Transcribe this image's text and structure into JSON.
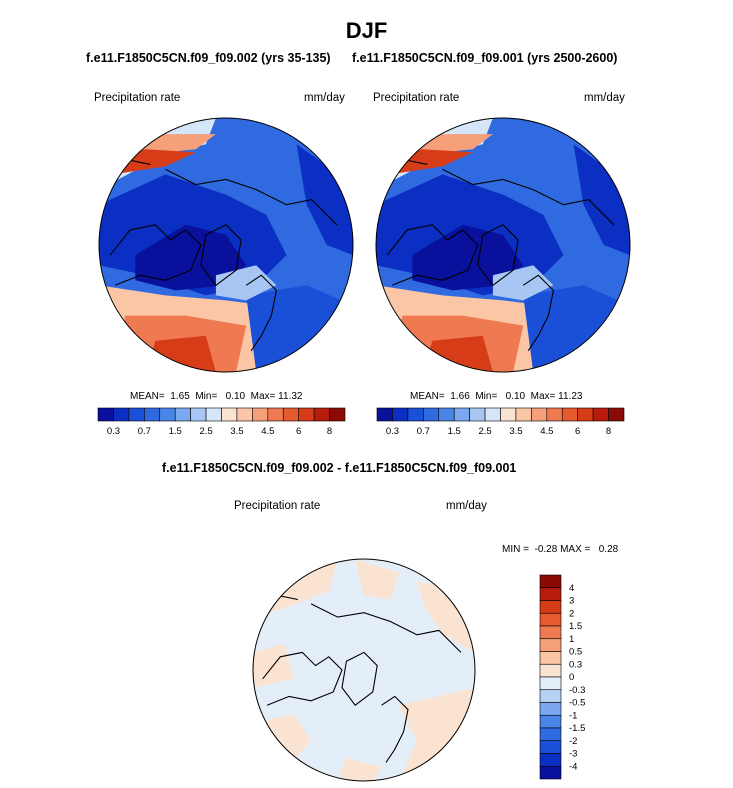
{
  "figure": {
    "title": "DJF",
    "left_title": "f.e11.F1850C5CN.f09_f09.002 (yrs 35-135)",
    "right_title": "f.e11.F1850C5CN.f09_f09.001 (yrs 2500-2600)",
    "diff_title": "f.e11.F1850C5CN.f09_f09.002 - f.e11.F1850C5CN.f09_f09.001"
  },
  "chart_data": [
    {
      "type": "heatmap",
      "projection": "north-polar-stereographic",
      "variable": "Precipitation rate",
      "units": "mm/day",
      "stats": {
        "mean_label": "MEAN=",
        "mean": "1.65",
        "min_label": "Min=",
        "min": "0.10",
        "max_label": "Max=",
        "max": "11.32"
      },
      "colorbar": {
        "levels": [
          0.2,
          0.3,
          0.5,
          0.7,
          1,
          1.5,
          2,
          2.5,
          3,
          3.5,
          4,
          4.5,
          5,
          6,
          7,
          8
        ],
        "tick_labels": [
          "0.3",
          "0.7",
          "1.5",
          "2.5",
          "3.5",
          "4.5",
          "6",
          "8"
        ],
        "colors": [
          "#08109c",
          "#0b2fc2",
          "#1a4fd8",
          "#2f6ae0",
          "#4a86e8",
          "#7ba8ef",
          "#a8c6f4",
          "#d5e6f8",
          "#fbe3d2",
          "#fac6a6",
          "#f5a07a",
          "#ef7a52",
          "#e55a2e",
          "#d63c18",
          "#b71c0c",
          "#8b0a06"
        ]
      }
    },
    {
      "type": "heatmap",
      "projection": "north-polar-stereographic",
      "variable": "Precipitation rate",
      "units": "mm/day",
      "stats": {
        "mean_label": "MEAN=",
        "mean": "1.66",
        "min_label": "Min=",
        "min": "0.10",
        "max_label": "Max=",
        "max": "11.23"
      },
      "colorbar": {
        "levels": [
          0.2,
          0.3,
          0.5,
          0.7,
          1,
          1.5,
          2,
          2.5,
          3,
          3.5,
          4,
          4.5,
          5,
          6,
          7,
          8
        ],
        "tick_labels": [
          "0.3",
          "0.7",
          "1.5",
          "2.5",
          "3.5",
          "4.5",
          "6",
          "8"
        ],
        "colors": [
          "#08109c",
          "#0b2fc2",
          "#1a4fd8",
          "#2f6ae0",
          "#4a86e8",
          "#7ba8ef",
          "#a8c6f4",
          "#d5e6f8",
          "#fbe3d2",
          "#fac6a6",
          "#f5a07a",
          "#ef7a52",
          "#e55a2e",
          "#d63c18",
          "#b71c0c",
          "#8b0a06"
        ]
      }
    },
    {
      "type": "heatmap",
      "projection": "north-polar-stereographic",
      "variable": "Precipitation rate",
      "units": "mm/day",
      "stats": {
        "min_label": "MIN =",
        "min": "-0.28",
        "max_label": "MAX =",
        "max": "0.28"
      },
      "colorbar": {
        "orientation": "vertical",
        "tick_labels": [
          "4",
          "3",
          "2",
          "1.5",
          "1",
          "0.5",
          "0.3",
          "0",
          "-0.3",
          "-0.5",
          "-1",
          "-1.5",
          "-2",
          "-3",
          "-4"
        ],
        "colors": [
          "#8b0a06",
          "#b71c0c",
          "#d63c18",
          "#e55a2e",
          "#ef7a52",
          "#f5a07a",
          "#fac6a6",
          "#fbe3d2",
          "#e4eef9",
          "#b8d2f3",
          "#7ba8ef",
          "#4a86e8",
          "#2f6ae0",
          "#1a4fd8",
          "#0b2fc2",
          "#08109c"
        ]
      }
    }
  ]
}
